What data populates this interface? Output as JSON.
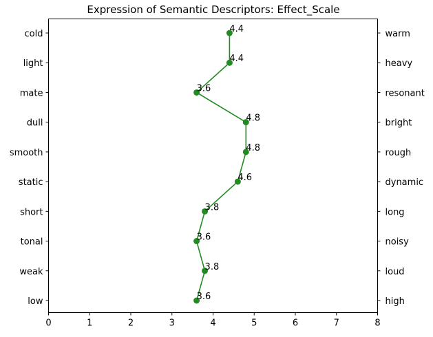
{
  "chart_data": {
    "type": "line",
    "title": "Expression of Semantic Descriptors: Effect_Scale",
    "xlabel": "",
    "ylabel": "",
    "xlim": [
      0,
      8
    ],
    "xticks": [
      "0",
      "1",
      "2",
      "3",
      "4",
      "5",
      "6",
      "7",
      "8"
    ],
    "grid": false,
    "legend": "none",
    "color": "#228b22",
    "categories_left": [
      "cold",
      "light",
      "mate",
      "dull",
      "smooth",
      "static",
      "short",
      "tonal",
      "weak",
      "low"
    ],
    "categories_right": [
      "warm",
      "heavy",
      "resonant",
      "bright",
      "rough",
      "dynamic",
      "long",
      "noisy",
      "loud",
      "high"
    ],
    "values": [
      4.4,
      4.4,
      3.6,
      4.8,
      4.8,
      4.6,
      3.8,
      3.6,
      3.8,
      3.6
    ],
    "value_labels": [
      "4.4",
      "4.4",
      "3.6",
      "4.8",
      "4.8",
      "4.6",
      "3.8",
      "3.6",
      "3.8",
      "3.6"
    ]
  }
}
